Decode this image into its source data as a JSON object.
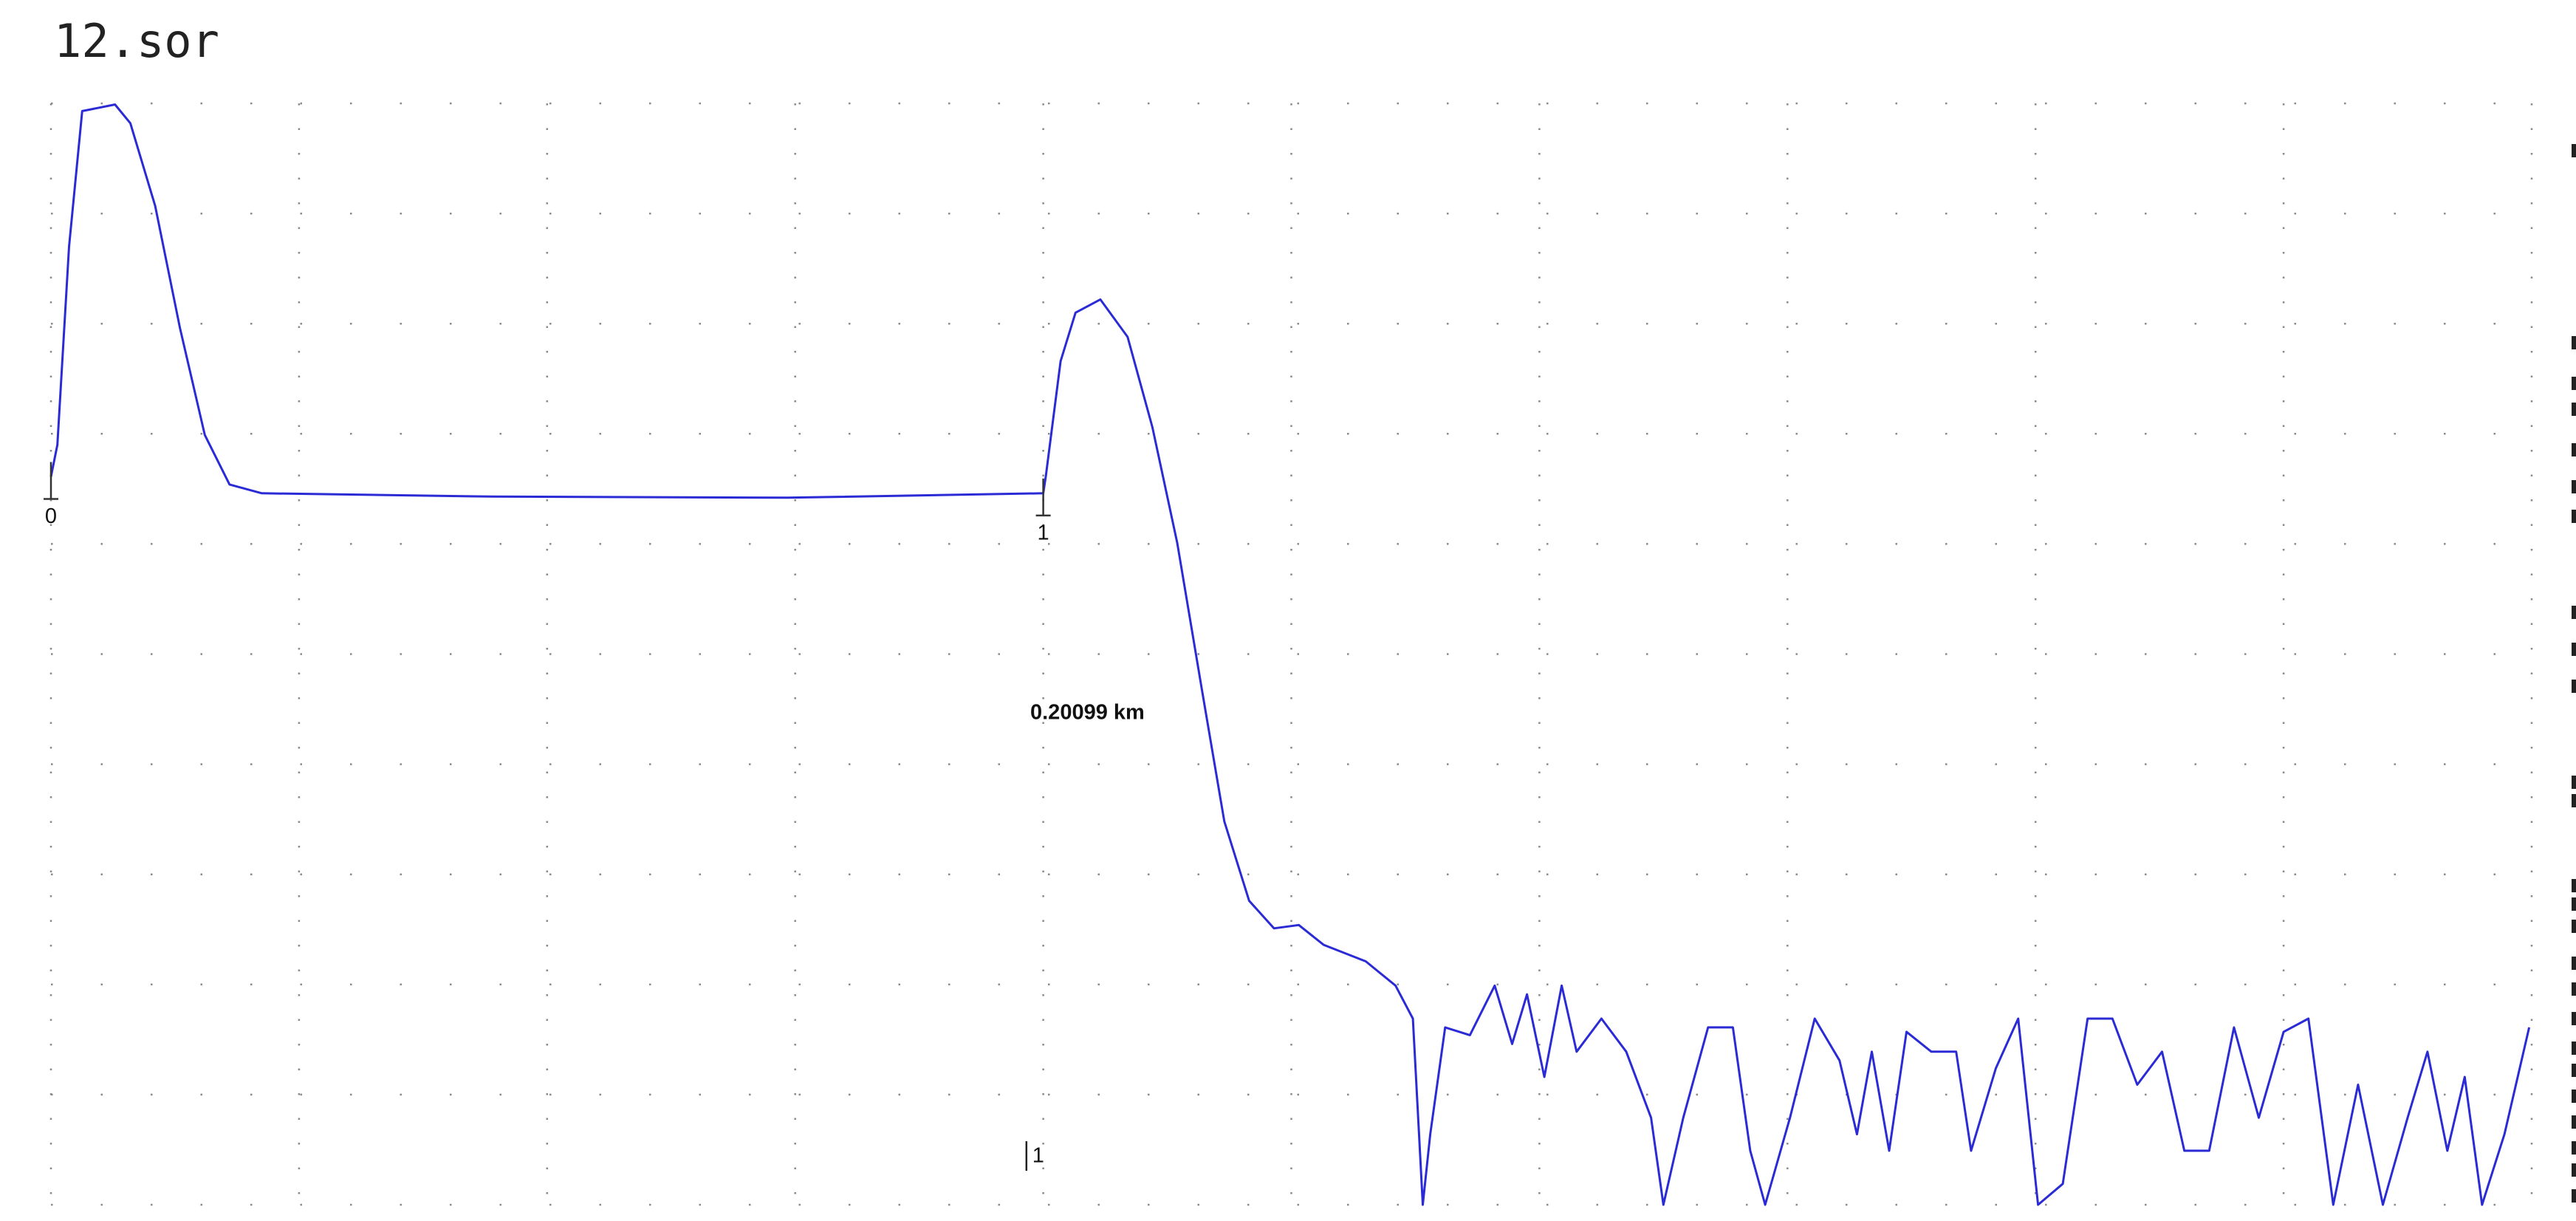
{
  "chart_data": {
    "type": "line",
    "title": "12.sor",
    "color": "#2b2bd6",
    "grid": true,
    "xlim": [
      0,
      10
    ],
    "ylim": [
      0,
      10
    ],
    "xticks": [
      0,
      1,
      2,
      3,
      4,
      5,
      6,
      7,
      8,
      9,
      10
    ],
    "yticks": [
      0,
      1,
      2,
      3,
      4,
      5,
      6,
      7,
      8,
      9,
      10
    ],
    "x": [
      0,
      0.026,
      0.073,
      0.126,
      0.258,
      0.32,
      0.42,
      0.52,
      0.62,
      0.72,
      0.85,
      1.78,
      2.97,
      4.0,
      4.01,
      4.07,
      4.13,
      4.23,
      4.34,
      4.44,
      4.54,
      4.64,
      4.73,
      4.83,
      4.93,
      5.03,
      5.13,
      5.3,
      5.42,
      5.49,
      5.53,
      5.56,
      5.62,
      5.72,
      5.82,
      5.89,
      5.95,
      6.02,
      6.09,
      6.15,
      6.25,
      6.35,
      6.45,
      6.5,
      6.58,
      6.68,
      6.78,
      6.85,
      6.91,
      7.01,
      7.11,
      7.21,
      7.28,
      7.34,
      7.41,
      7.48,
      7.58,
      7.68,
      7.74,
      7.84,
      7.93,
      8.01,
      8.11,
      8.21,
      8.31,
      8.41,
      8.51,
      8.6,
      8.7,
      8.8,
      8.9,
      9.0,
      9.1,
      9.2,
      9.3,
      9.4,
      9.5,
      9.58,
      9.66,
      9.73,
      9.8,
      9.89,
      9.99
    ],
    "values": [
      6.61,
      6.9,
      8.7,
      9.93,
      9.99,
      9.82,
      9.07,
      7.96,
      6.99,
      6.54,
      6.46,
      6.43,
      6.42,
      6.46,
      6.61,
      7.66,
      8.1,
      8.22,
      7.88,
      7.06,
      6.01,
      4.67,
      3.48,
      2.76,
      2.51,
      2.54,
      2.36,
      2.21,
      1.99,
      1.69,
      0,
      0.64,
      1.61,
      1.54,
      1.99,
      1.46,
      1.91,
      1.16,
      1.99,
      1.39,
      1.69,
      1.39,
      0.79,
      0,
      0.79,
      1.61,
      1.61,
      0.49,
      0,
      0.79,
      1.69,
      1.31,
      0.64,
      1.39,
      0.49,
      1.57,
      1.39,
      1.39,
      0.49,
      1.24,
      1.69,
      0,
      0.19,
      1.69,
      1.69,
      1.09,
      1.39,
      0.49,
      0.49,
      1.61,
      0.79,
      1.57,
      1.69,
      0,
      1.09,
      0,
      0.79,
      1.39,
      0.49,
      1.16,
      0,
      0.64,
      1.61
    ],
    "markers": [
      {
        "label": "0",
        "x": 0,
        "y": 6.61
      },
      {
        "label": "1",
        "x": 4.0,
        "y": 6.46
      }
    ],
    "cursor": {
      "label": "1",
      "x": 3.95
    },
    "annotation": "0.20099 km"
  }
}
